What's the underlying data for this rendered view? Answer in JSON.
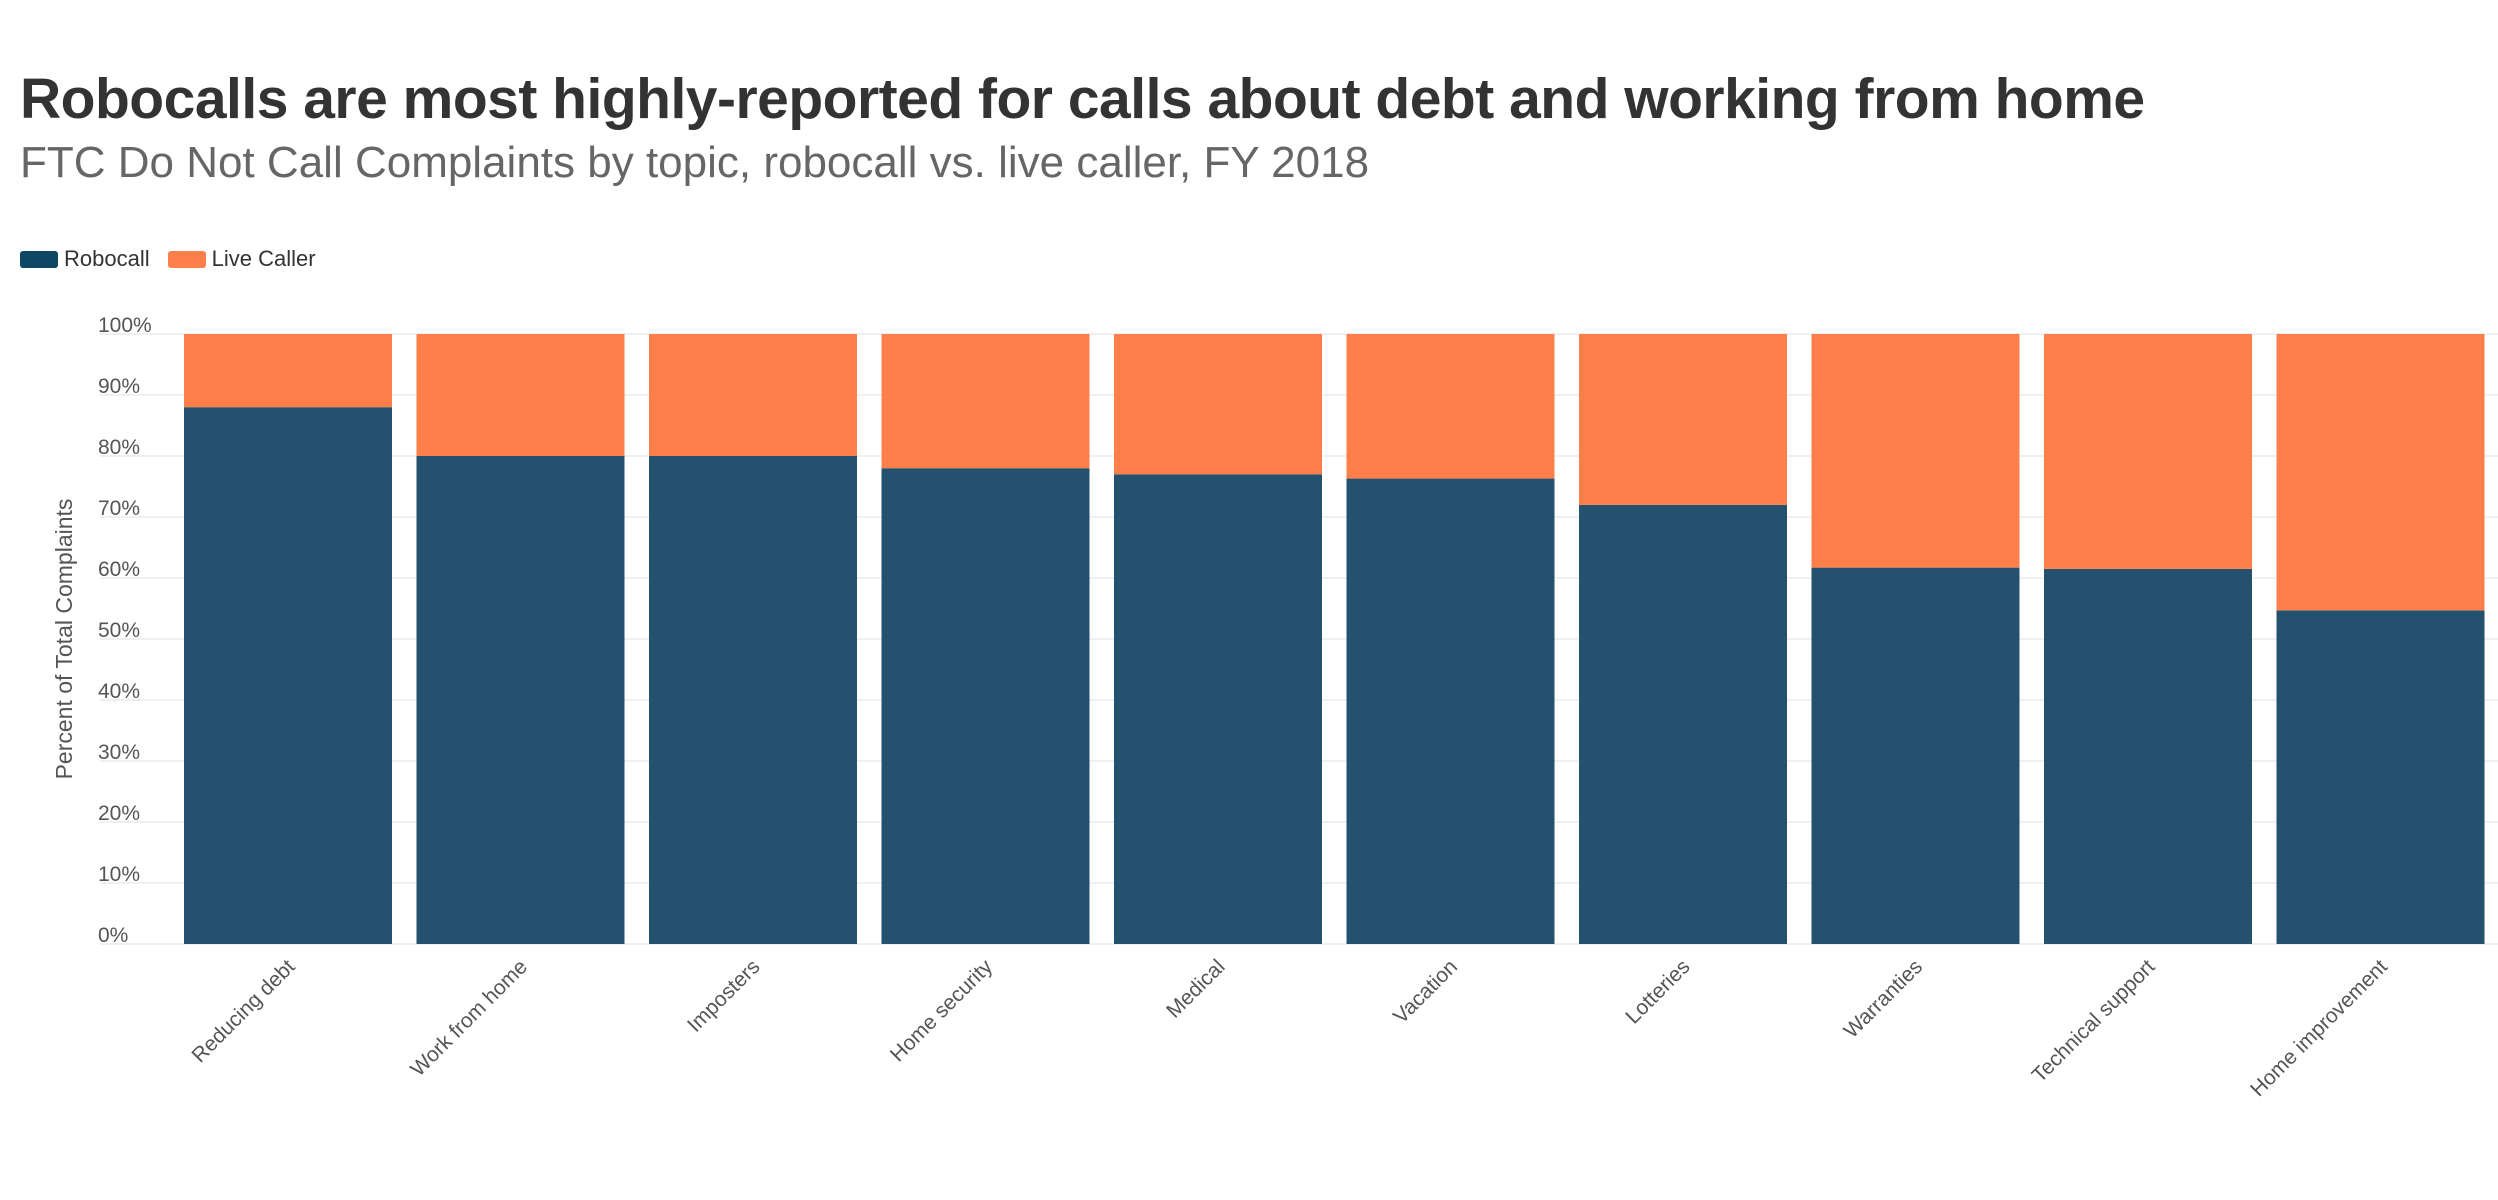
{
  "chart_data": {
    "type": "bar",
    "stacked": true,
    "title": "Robocalls are most highly-reported for calls about debt and working from home",
    "subtitle": "FTC Do Not Call Complaints by topic, robocall vs. live caller, FY 2018",
    "ylabel": "Percent of Total Complaints",
    "xlabel": "",
    "ylim": [
      0,
      100
    ],
    "y_ticks": [
      "0%",
      "10%",
      "20%",
      "30%",
      "40%",
      "50%",
      "60%",
      "70%",
      "80%",
      "90%",
      "100%"
    ],
    "grid": true,
    "legend_position": "top-left",
    "categories": [
      "Reducing debt",
      "Work from home",
      "Imposters",
      "Home security",
      "Medical",
      "Vacation",
      "Lotteries",
      "Warranties",
      "Technical support",
      "Home improvement"
    ],
    "series": [
      {
        "name": "Robocall",
        "color": "#24526e",
        "legend_color": "#0d4763",
        "values": [
          88,
          80,
          80,
          78,
          77,
          76.3,
          72,
          61.7,
          61.5,
          54.7
        ]
      },
      {
        "name": "Live Caller",
        "color": "#ff7f4b",
        "legend_color": "#ff7f4b",
        "values": [
          12,
          20,
          20,
          22,
          23,
          23.7,
          28,
          38.3,
          38.5,
          45.3
        ]
      }
    ]
  }
}
